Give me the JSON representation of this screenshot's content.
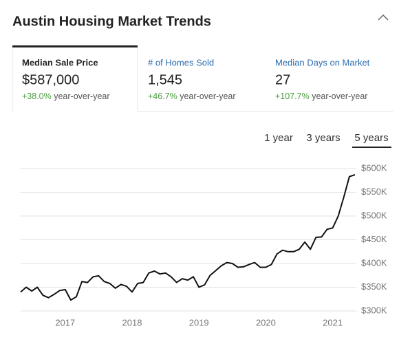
{
  "header": {
    "title": "Austin Housing Market Trends"
  },
  "stats": [
    {
      "label": "Median Sale Price",
      "value": "$587,000",
      "change": "+38.0%",
      "change_note": "year-over-year"
    },
    {
      "label": "# of Homes Sold",
      "value": "1,545",
      "change": "+46.7%",
      "change_note": "year-over-year"
    },
    {
      "label": "Median Days on Market",
      "value": "27",
      "change": "+107.7%",
      "change_note": "year-over-year"
    }
  ],
  "ranges": [
    "1 year",
    "3 years",
    "5 years"
  ],
  "chart_data": {
    "type": "line",
    "categories": [
      null,
      null,
      null,
      null,
      null,
      null,
      null,
      null,
      "2017",
      null,
      null,
      null,
      null,
      null,
      null,
      null,
      null,
      null,
      null,
      null,
      "2018",
      null,
      null,
      null,
      null,
      null,
      null,
      null,
      null,
      null,
      null,
      null,
      "2019",
      null,
      null,
      null,
      null,
      null,
      null,
      null,
      null,
      null,
      null,
      null,
      "2020",
      null,
      null,
      null,
      null,
      null,
      null,
      null,
      null,
      null,
      null,
      null,
      "2021",
      null,
      null,
      null,
      null
    ],
    "series": [
      {
        "name": "Median Sale Price",
        "color": "#111111",
        "values": [
          340,
          350,
          342,
          350,
          333,
          328,
          335,
          343,
          345,
          323,
          330,
          362,
          360,
          372,
          374,
          362,
          358,
          348,
          356,
          352,
          340,
          358,
          360,
          380,
          384,
          378,
          380,
          372,
          360,
          368,
          365,
          372,
          350,
          355,
          375,
          385,
          395,
          402,
          400,
          392,
          393,
          398,
          402,
          392,
          392,
          398,
          420,
          428,
          425,
          425,
          430,
          445,
          430,
          455,
          456,
          472,
          475,
          500,
          540,
          583,
          587
        ]
      }
    ],
    "ylim": [
      300,
      600
    ],
    "yticks": [
      {
        "value": 300,
        "label": "$300K"
      },
      {
        "value": 350,
        "label": "$350K"
      },
      {
        "value": 400,
        "label": "$400K"
      },
      {
        "value": 450,
        "label": "$450K"
      },
      {
        "value": 500,
        "label": "$500K"
      },
      {
        "value": 550,
        "label": "$550K"
      },
      {
        "value": 600,
        "label": "$600K"
      }
    ],
    "grid": true
  }
}
